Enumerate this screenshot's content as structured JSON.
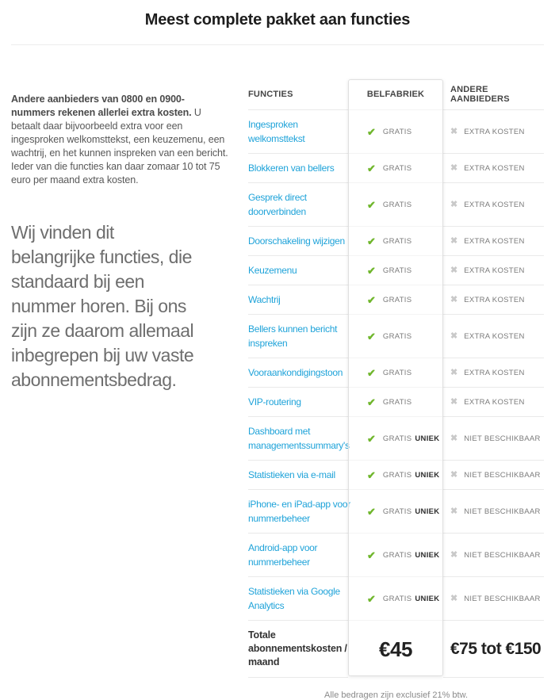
{
  "page": {
    "title": "Meest complete pakket aan functies",
    "footnote": "Alle bedragen zijn exclusief 21% btw."
  },
  "intro": {
    "bold": "Andere aanbieders van 0800 en 0900-nummers rekenen allerlei extra kosten.",
    "regular": " U betaalt daar bijvoorbeeld extra voor een ingesproken welkomsttekst, een keuzemenu, een wachtrij, en het kunnen inspreken van een bericht. Ieder van die functies kan daar zomaar 10 tot 75 euro per maand extra kosten."
  },
  "statement_lines": [
    "Wij vinden dit",
    "belangrijke functies, die",
    "standaard bij een",
    "nummer horen. Bij ons",
    "zijn ze daarom allemaal",
    "inbegrepen bij uw vaste",
    "abonnementsbedrag."
  ],
  "icons": {
    "check": "✔",
    "cross": "✖"
  },
  "colors": {
    "link": "#1fa3d9",
    "check": "#6fb62c",
    "cross": "#c9c9c9"
  },
  "table": {
    "headers": {
      "functies": "FUNCTIES",
      "belfabriek": "BELFABRIEK",
      "andere": "ANDERE AANBIEDERS"
    },
    "rows": [
      {
        "label_lines": [
          "Ingesproken",
          "welkomsttekst"
        ],
        "belfabriek": {
          "icon": "check",
          "text": "GRATIS"
        },
        "andere": {
          "icon": "cross",
          "text": "EXTRA KOSTEN"
        }
      },
      {
        "label_lines": [
          "Blokkeren van bellers"
        ],
        "belfabriek": {
          "icon": "check",
          "text": "GRATIS"
        },
        "andere": {
          "icon": "cross",
          "text": "EXTRA KOSTEN"
        }
      },
      {
        "label_lines": [
          "Gesprek direct",
          "doorverbinden"
        ],
        "belfabriek": {
          "icon": "check",
          "text": "GRATIS"
        },
        "andere": {
          "icon": "cross",
          "text": "EXTRA KOSTEN"
        }
      },
      {
        "label_lines": [
          "Doorschakeling wijzigen"
        ],
        "belfabriek": {
          "icon": "check",
          "text": "GRATIS"
        },
        "andere": {
          "icon": "cross",
          "text": "EXTRA KOSTEN"
        }
      },
      {
        "label_lines": [
          "Keuzemenu"
        ],
        "belfabriek": {
          "icon": "check",
          "text": "GRATIS"
        },
        "andere": {
          "icon": "cross",
          "text": "EXTRA KOSTEN"
        }
      },
      {
        "label_lines": [
          "Wachtrij"
        ],
        "belfabriek": {
          "icon": "check",
          "text": "GRATIS"
        },
        "andere": {
          "icon": "cross",
          "text": "EXTRA KOSTEN"
        }
      },
      {
        "label_lines": [
          "Bellers kunnen bericht",
          "inspreken"
        ],
        "belfabriek": {
          "icon": "check",
          "text": "GRATIS"
        },
        "andere": {
          "icon": "cross",
          "text": "EXTRA KOSTEN"
        }
      },
      {
        "label_lines": [
          "Vooraankondigingstoon"
        ],
        "belfabriek": {
          "icon": "check",
          "text": "GRATIS"
        },
        "andere": {
          "icon": "cross",
          "text": "EXTRA KOSTEN"
        }
      },
      {
        "label_lines": [
          "VIP-routering"
        ],
        "belfabriek": {
          "icon": "check",
          "text": "GRATIS"
        },
        "andere": {
          "icon": "cross",
          "text": "EXTRA KOSTEN"
        }
      },
      {
        "label_lines": [
          "Dashboard met",
          "managementssummary's"
        ],
        "belfabriek": {
          "icon": "check",
          "text": "GRATIS",
          "badge": "UNIEK"
        },
        "andere": {
          "icon": "cross",
          "text": "NIET BESCHIKBAAR"
        }
      },
      {
        "label_lines": [
          "Statistieken via e-mail"
        ],
        "belfabriek": {
          "icon": "check",
          "text": "GRATIS",
          "badge": "UNIEK"
        },
        "andere": {
          "icon": "cross",
          "text": "NIET BESCHIKBAAR"
        }
      },
      {
        "label_lines": [
          "iPhone- en iPad-app voor",
          "nummerbeheer"
        ],
        "belfabriek": {
          "icon": "check",
          "text": "GRATIS",
          "badge": "UNIEK"
        },
        "andere": {
          "icon": "cross",
          "text": "NIET BESCHIKBAAR"
        }
      },
      {
        "label_lines": [
          "Android-app voor",
          "nummerbeheer"
        ],
        "belfabriek": {
          "icon": "check",
          "text": "GRATIS",
          "badge": "UNIEK"
        },
        "andere": {
          "icon": "cross",
          "text": "NIET BESCHIKBAAR"
        }
      },
      {
        "label_lines": [
          "Statistieken via Google",
          "Analytics"
        ],
        "belfabriek": {
          "icon": "check",
          "text": "GRATIS",
          "badge": "UNIEK"
        },
        "andere": {
          "icon": "cross",
          "text": "NIET BESCHIKBAAR"
        }
      }
    ],
    "total": {
      "label_lines": [
        "Totale",
        "abonnementskosten /",
        "maand"
      ],
      "belfabriek_price": "€45",
      "andere_price": "€75 tot €150"
    }
  }
}
